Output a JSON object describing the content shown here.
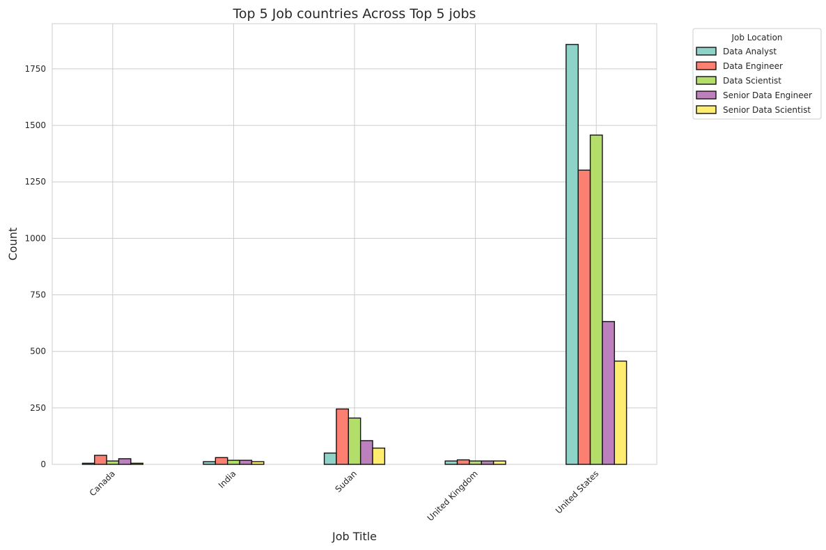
{
  "chart_data": {
    "type": "bar",
    "title": "Top 5 Job countries Across Top 5 jobs",
    "xlabel": "Job Title",
    "ylabel": "Count",
    "categories": [
      "Canada",
      "India",
      "Sudan",
      "United Kingdom",
      "United States"
    ],
    "ylim": [
      0,
      1950
    ],
    "yticks": [
      0,
      250,
      500,
      750,
      1000,
      1250,
      1500,
      1750
    ],
    "grid": true,
    "legend": {
      "title": "Job Location",
      "position": "outside-top-right"
    },
    "series": [
      {
        "name": "Data Analyst",
        "color": "#8dd3c7",
        "values": [
          5,
          12,
          50,
          15,
          1858
        ]
      },
      {
        "name": "Data Engineer",
        "color": "#fb8072",
        "values": [
          40,
          30,
          245,
          20,
          1302
        ]
      },
      {
        "name": "Data Scientist",
        "color": "#b3de69",
        "values": [
          15,
          18,
          205,
          15,
          1457
        ]
      },
      {
        "name": "Senior Data Engineer",
        "color": "#bc80bd",
        "values": [
          25,
          18,
          105,
          15,
          632
        ]
      },
      {
        "name": "Senior Data Scientist",
        "color": "#ffed6f",
        "values": [
          5,
          12,
          72,
          15,
          457
        ]
      }
    ]
  }
}
